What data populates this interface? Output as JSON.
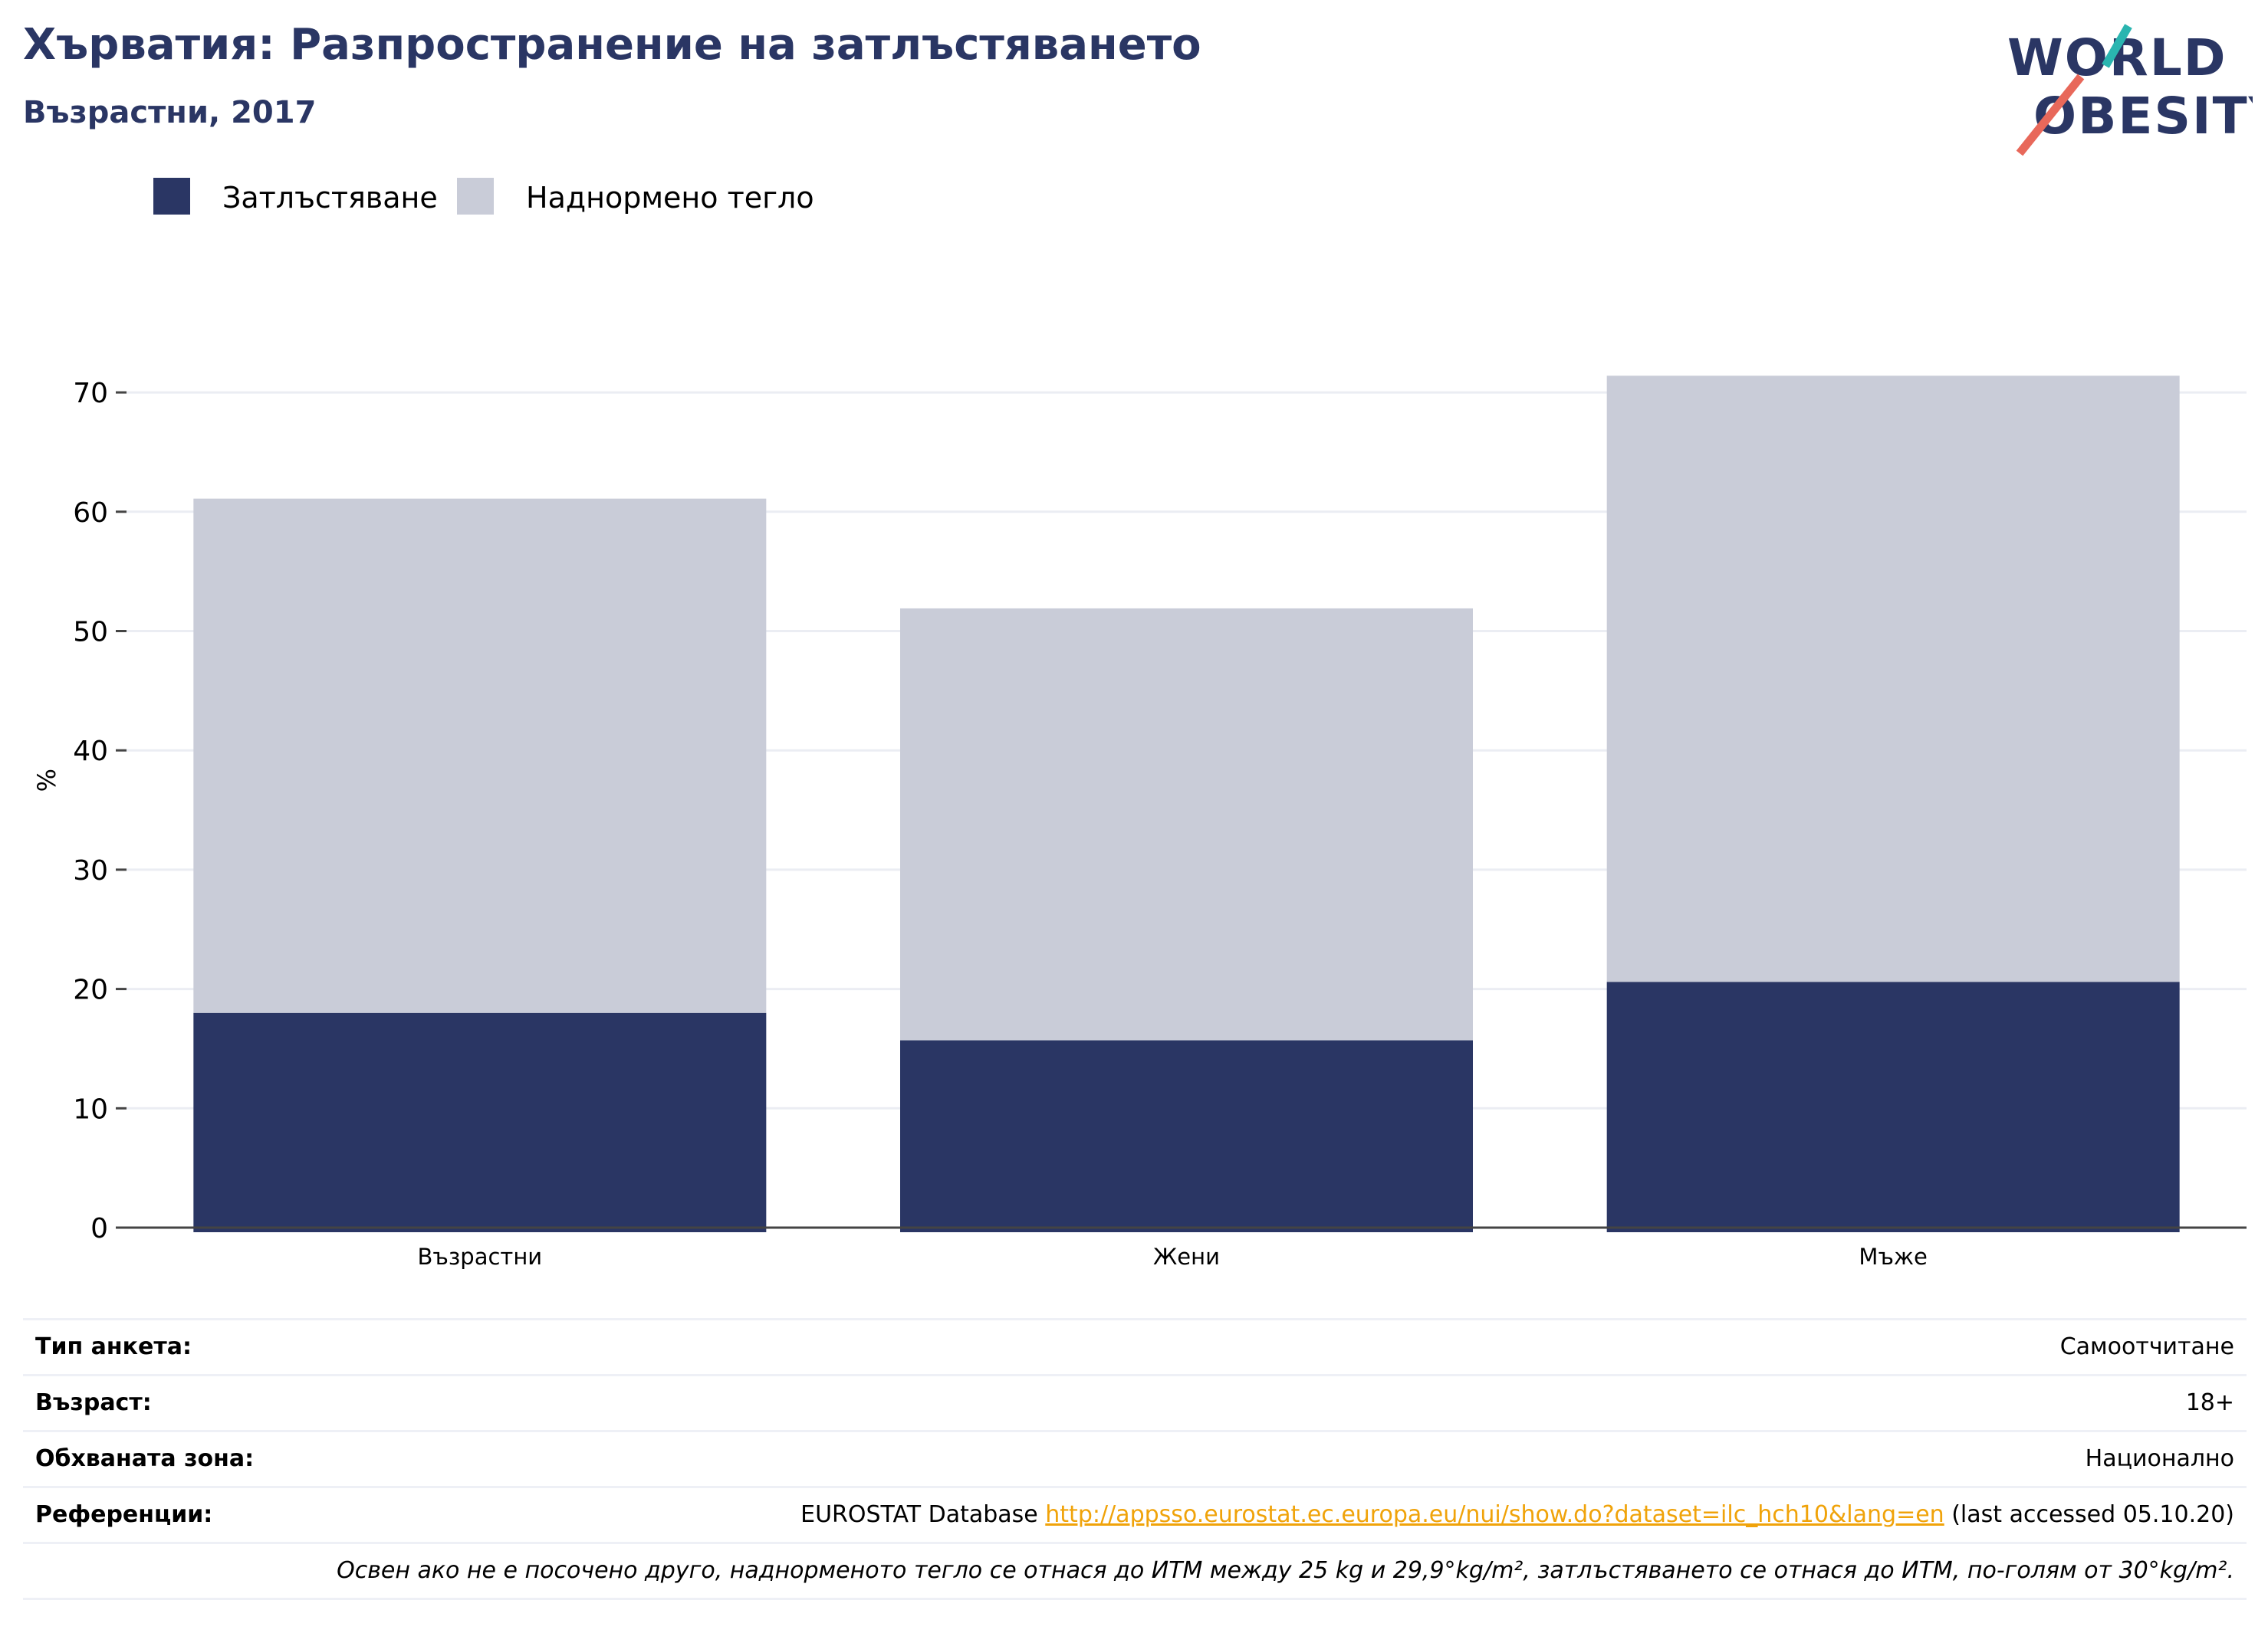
{
  "header": {
    "title": "Хърватия: Разпространение на затлъстяването",
    "subtitle": "Възрастни, 2017"
  },
  "logo": {
    "line1": "WORLD",
    "line2": "OBESITY"
  },
  "colors": {
    "obesity": "#2a3664",
    "overweight": "#c9ccd8",
    "title": "#2a3664",
    "link": "#f0a30a",
    "logo_teal": "#2ab5b0",
    "logo_coral": "#e8685a"
  },
  "chart_data": {
    "type": "bar",
    "stacked": true,
    "categories": [
      "Възрастни",
      "Жени",
      "Мъже"
    ],
    "series": [
      {
        "name": "Затлъстяване",
        "values": [
          18.0,
          15.7,
          20.6
        ]
      },
      {
        "name": "Наднормено тегло",
        "values": [
          43.1,
          36.2,
          50.8
        ]
      }
    ],
    "totals": [
      61.1,
      51.9,
      71.4
    ],
    "ylabel": "%",
    "xlabel": "",
    "ylim": [
      0,
      75
    ],
    "yticks": [
      0,
      10,
      20,
      30,
      40,
      50,
      60,
      70
    ],
    "grid": true,
    "legend": "top-left"
  },
  "footer": {
    "rows": [
      {
        "label": "Тип анкета:",
        "value": "Самоотчитане"
      },
      {
        "label": "Възраст:",
        "value": "18+"
      },
      {
        "label": "Обхваната зона:",
        "value": "Национално"
      }
    ],
    "reference": {
      "label": "Референции:",
      "prefix": "EUROSTAT Database ",
      "link": "http://appsso.eurostat.ec.europa.eu/nui/show.do?dataset=ilc_hch10&lang=en",
      "suffix": " (last accessed 05.10.20)"
    },
    "note": "Освен ако не е посочено друго, наднорменото тегло се отнася до ИТМ между 25 kg и 29,9°kg/m², затлъстяването се отнася до ИТМ, по-голям от 30°kg/m²."
  }
}
